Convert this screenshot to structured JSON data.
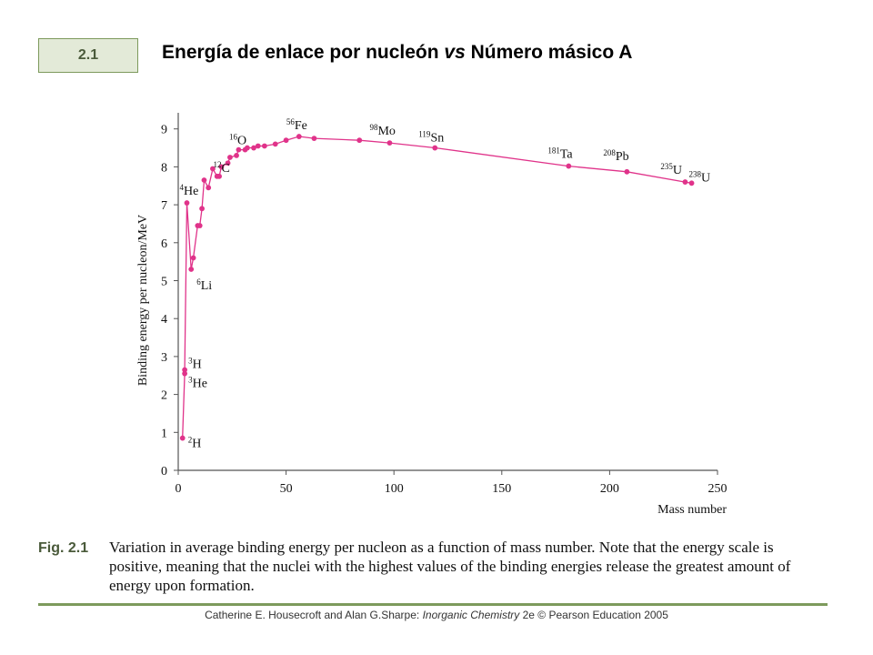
{
  "header": {
    "badge": "2.1",
    "title_part1": "Energía de enlace por nucleón ",
    "title_vs": "vs",
    "title_part2": " Número másico A"
  },
  "caption": {
    "label": "Fig. 2.1",
    "text": "Variation in average binding energy per nucleon as a function of mass number. Note that the energy scale is positive, meaning that the nuclei with the highest values of the binding energies release the greatest amount of energy upon formation."
  },
  "footer": {
    "authors": "Catherine E. Housecroft and Alan G.Sharpe: ",
    "book": "Inorganic Chemistry",
    "edition": " 2e © Pearson Education 2005"
  },
  "colors": {
    "series": "#e0338a",
    "axis": "#555555",
    "accent": "#7d9a5c"
  },
  "chart_data": {
    "type": "line",
    "title": "",
    "xlabel": "Mass number",
    "ylabel": "Binding energy per nucleon/MeV",
    "xlim": [
      0,
      250
    ],
    "ylim": [
      0,
      9.3
    ],
    "xticks": [
      0,
      50,
      100,
      150,
      200,
      250
    ],
    "yticks": [
      0,
      1,
      2,
      3,
      4,
      5,
      6,
      7,
      8,
      9
    ],
    "grid": false,
    "series": [
      {
        "name": "Binding energy per nucleon",
        "points": [
          [
            2,
            0.85
          ],
          [
            3,
            2.55
          ],
          [
            3,
            2.65
          ],
          [
            4,
            7.05
          ],
          [
            6,
            5.3
          ],
          [
            7,
            5.6
          ],
          [
            9,
            6.45
          ],
          [
            10,
            6.45
          ],
          [
            11,
            6.9
          ],
          [
            12,
            7.65
          ],
          [
            14,
            7.45
          ],
          [
            16,
            7.95
          ],
          [
            18,
            7.75
          ],
          [
            19,
            7.75
          ],
          [
            20,
            8.0
          ],
          [
            23,
            8.1
          ],
          [
            24,
            8.25
          ],
          [
            27,
            8.3
          ],
          [
            28,
            8.45
          ],
          [
            31,
            8.45
          ],
          [
            32,
            8.5
          ],
          [
            35,
            8.5
          ],
          [
            37,
            8.55
          ],
          [
            40,
            8.55
          ],
          [
            45,
            8.6
          ],
          [
            50,
            8.7
          ],
          [
            56,
            8.8
          ],
          [
            63,
            8.75
          ],
          [
            84,
            8.7
          ],
          [
            98,
            8.63
          ],
          [
            119,
            8.5
          ],
          [
            181,
            8.02
          ],
          [
            208,
            7.87
          ],
          [
            235,
            7.6
          ],
          [
            238,
            7.57
          ]
        ]
      }
    ],
    "annotations": [
      {
        "mass": "2",
        "symbol": "H",
        "x": 2,
        "y": 0.85
      },
      {
        "mass": "3",
        "symbol": "H",
        "x": 3,
        "y": 2.65
      },
      {
        "mass": "3",
        "symbol": "He",
        "x": 3,
        "y": 2.55
      },
      {
        "mass": "4",
        "symbol": "He",
        "x": 4,
        "y": 7.05
      },
      {
        "mass": "6",
        "symbol": "Li",
        "x": 6,
        "y": 5.3
      },
      {
        "mass": "12",
        "symbol": "C",
        "x": 12,
        "y": 7.65
      },
      {
        "mass": "16",
        "symbol": "O",
        "x": 16,
        "y": 7.95
      },
      {
        "mass": "56",
        "symbol": "Fe",
        "x": 56,
        "y": 8.8
      },
      {
        "mass": "98",
        "symbol": "Mo",
        "x": 98,
        "y": 8.63
      },
      {
        "mass": "119",
        "symbol": "Sn",
        "x": 119,
        "y": 8.5
      },
      {
        "mass": "181",
        "symbol": "Ta",
        "x": 181,
        "y": 8.02
      },
      {
        "mass": "208",
        "symbol": "Pb",
        "x": 208,
        "y": 7.87
      },
      {
        "mass": "235",
        "symbol": "U",
        "x": 235,
        "y": 7.6
      },
      {
        "mass": "238",
        "symbol": "U",
        "x": 238,
        "y": 7.57
      }
    ]
  }
}
